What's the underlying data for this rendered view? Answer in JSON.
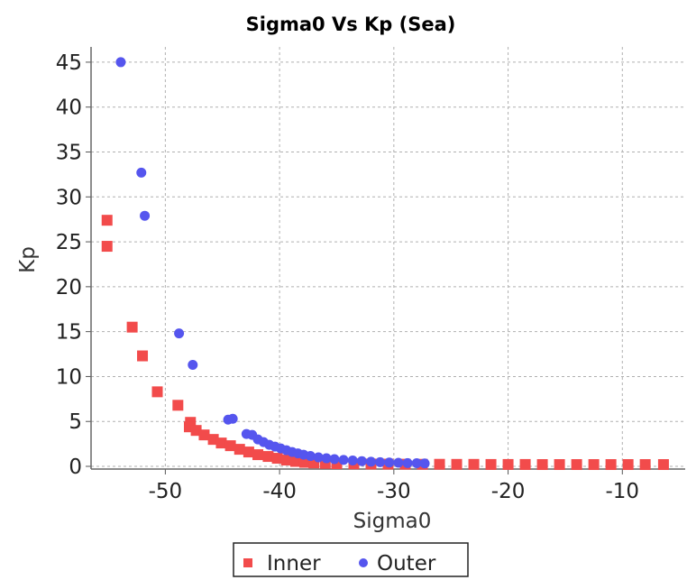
{
  "chart_data": {
    "type": "scatter",
    "title": "Sigma0 Vs Kp (Sea)",
    "xlabel": "Sigma0",
    "ylabel": "Kp",
    "xlim": [
      -56.5,
      -4.5
    ],
    "ylim": [
      -0.3,
      46.7
    ],
    "xticks": [
      -50,
      -40,
      -30,
      -20,
      -10
    ],
    "yticks": [
      0,
      5,
      10,
      15,
      20,
      25,
      30,
      35,
      40,
      45
    ],
    "grid": true,
    "legend_position": "bottom",
    "series": [
      {
        "name": "Inner",
        "marker": "square",
        "color": "#f24b4b",
        "points": [
          [
            -55.1,
            27.4
          ],
          [
            -55.1,
            24.5
          ],
          [
            -52.9,
            15.5
          ],
          [
            -52.0,
            12.3
          ],
          [
            -50.7,
            8.3
          ],
          [
            -48.9,
            6.8
          ],
          [
            -47.8,
            4.9
          ],
          [
            -47.9,
            4.4
          ],
          [
            -47.3,
            4.0
          ],
          [
            -46.6,
            3.5
          ],
          [
            -45.8,
            3.0
          ],
          [
            -45.1,
            2.6
          ],
          [
            -44.3,
            2.3
          ],
          [
            -43.5,
            1.9
          ],
          [
            -42.7,
            1.6
          ],
          [
            -41.9,
            1.3
          ],
          [
            -41.0,
            1.1
          ],
          [
            -40.2,
            0.9
          ],
          [
            -39.4,
            0.7
          ],
          [
            -38.6,
            0.55
          ],
          [
            -37.8,
            0.45
          ],
          [
            -37.0,
            0.38
          ],
          [
            -36.0,
            0.33
          ],
          [
            -35.0,
            0.3
          ],
          [
            -33.5,
            0.28
          ],
          [
            -32.0,
            0.26
          ],
          [
            -30.5,
            0.25
          ],
          [
            -29.0,
            0.24
          ],
          [
            -27.5,
            0.23
          ],
          [
            -26.0,
            0.23
          ],
          [
            -24.5,
            0.22
          ],
          [
            -23.0,
            0.22
          ],
          [
            -21.5,
            0.21
          ],
          [
            -20.0,
            0.21
          ],
          [
            -18.5,
            0.21
          ],
          [
            -17.0,
            0.2
          ],
          [
            -15.5,
            0.2
          ],
          [
            -14.0,
            0.2
          ],
          [
            -12.5,
            0.2
          ],
          [
            -11.0,
            0.2
          ],
          [
            -9.5,
            0.2
          ],
          [
            -8.0,
            0.2
          ],
          [
            -6.4,
            0.2
          ]
        ]
      },
      {
        "name": "Outer",
        "marker": "circle",
        "color": "#5555ee",
        "points": [
          [
            -53.9,
            45.0
          ],
          [
            -52.1,
            32.7
          ],
          [
            -51.8,
            27.9
          ],
          [
            -48.8,
            14.8
          ],
          [
            -47.6,
            11.3
          ],
          [
            -44.5,
            5.2
          ],
          [
            -44.1,
            5.3
          ],
          [
            -42.9,
            3.6
          ],
          [
            -42.4,
            3.5
          ],
          [
            -41.9,
            3.0
          ],
          [
            -41.4,
            2.7
          ],
          [
            -40.9,
            2.4
          ],
          [
            -40.4,
            2.2
          ],
          [
            -39.9,
            2.0
          ],
          [
            -39.4,
            1.8
          ],
          [
            -38.9,
            1.6
          ],
          [
            -38.4,
            1.45
          ],
          [
            -37.9,
            1.3
          ],
          [
            -37.3,
            1.15
          ],
          [
            -36.6,
            1.0
          ],
          [
            -35.9,
            0.9
          ],
          [
            -35.2,
            0.8
          ],
          [
            -34.4,
            0.72
          ],
          [
            -33.6,
            0.65
          ],
          [
            -32.8,
            0.58
          ],
          [
            -32.0,
            0.52
          ],
          [
            -31.2,
            0.47
          ],
          [
            -30.4,
            0.43
          ],
          [
            -29.6,
            0.4
          ],
          [
            -28.8,
            0.37
          ],
          [
            -28.0,
            0.35
          ],
          [
            -27.3,
            0.33
          ]
        ]
      }
    ]
  }
}
